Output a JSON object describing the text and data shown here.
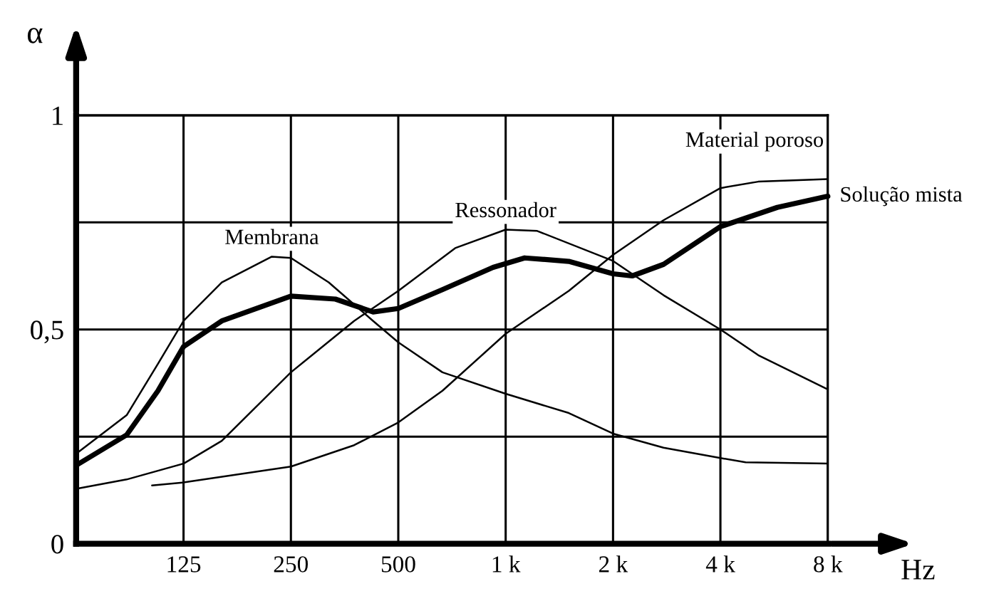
{
  "chart_data": {
    "type": "line",
    "xlabel": "Hz",
    "ylabel": "α",
    "log": "x",
    "grid": true,
    "marker": "none",
    "line_style": "solid",
    "xlim": [
      62.5,
      8000
    ],
    "xticks": [
      {
        "value": 125,
        "label": "125"
      },
      {
        "value": 250,
        "label": "250"
      },
      {
        "value": 500,
        "label": "500"
      },
      {
        "value": 1000,
        "label": "1 k"
      },
      {
        "value": 2000,
        "label": "2 k"
      },
      {
        "value": 4000,
        "label": "4 k"
      },
      {
        "value": 8000,
        "label": "8 k"
      }
    ],
    "ylim": [
      0,
      1
    ],
    "yticks": [
      0,
      {
        "value": 0.25,
        "label": null
      },
      {
        "value": 0.5,
        "label": "0,5"
      },
      {
        "value": 0.75,
        "label": null
      },
      1
    ],
    "series": [
      {
        "name": "Membrana",
        "color": "#000000",
        "x": [
          62.5,
          86.6,
          106,
          125,
          160,
          221,
          250,
          319,
          425,
          500,
          665,
          1000,
          1503,
          2000,
          2771,
          4000,
          4707,
          8000
        ],
        "values": [
          0.21,
          0.3,
          0.42,
          0.52,
          0.61,
          0.67,
          0.667,
          0.61,
          0.52,
          0.47,
          0.4,
          0.35,
          0.305,
          0.257,
          0.224,
          0.2,
          0.19,
          0.187
        ]
      },
      {
        "name": "Ressonador",
        "color": "#000000",
        "x": [
          62.5,
          86.6,
          125,
          160,
          250,
          376,
          500,
          722,
          1000,
          1226,
          2000,
          2771,
          4000,
          5107,
          8000
        ],
        "values": [
          0.128,
          0.15,
          0.187,
          0.24,
          0.4,
          0.52,
          0.59,
          0.69,
          0.733,
          0.73,
          0.66,
          0.58,
          0.5,
          0.44,
          0.36
        ]
      },
      {
        "name": "Material poroso",
        "color": "#000000",
        "x": [
          102,
          125,
          250,
          376,
          500,
          665,
          1000,
          1503,
          2000,
          2771,
          4000,
          5107,
          8000
        ],
        "values": [
          0.136,
          0.143,
          0.18,
          0.23,
          0.283,
          0.357,
          0.49,
          0.59,
          0.674,
          0.755,
          0.83,
          0.845,
          0.851
        ]
      },
      {
        "name": "Solução mista",
        "color": "#000000",
        "x": [
          62.5,
          86.6,
          106,
          125,
          160,
          250,
          333,
          425,
          500,
          665,
          922,
          1130,
          1503,
          2000,
          2263,
          2771,
          4000,
          5775,
          8000
        ],
        "values": [
          0.183,
          0.254,
          0.357,
          0.46,
          0.52,
          0.578,
          0.571,
          0.541,
          0.549,
          0.593,
          0.645,
          0.667,
          0.659,
          0.63,
          0.625,
          0.652,
          0.74,
          0.785,
          0.811
        ]
      }
    ]
  }
}
